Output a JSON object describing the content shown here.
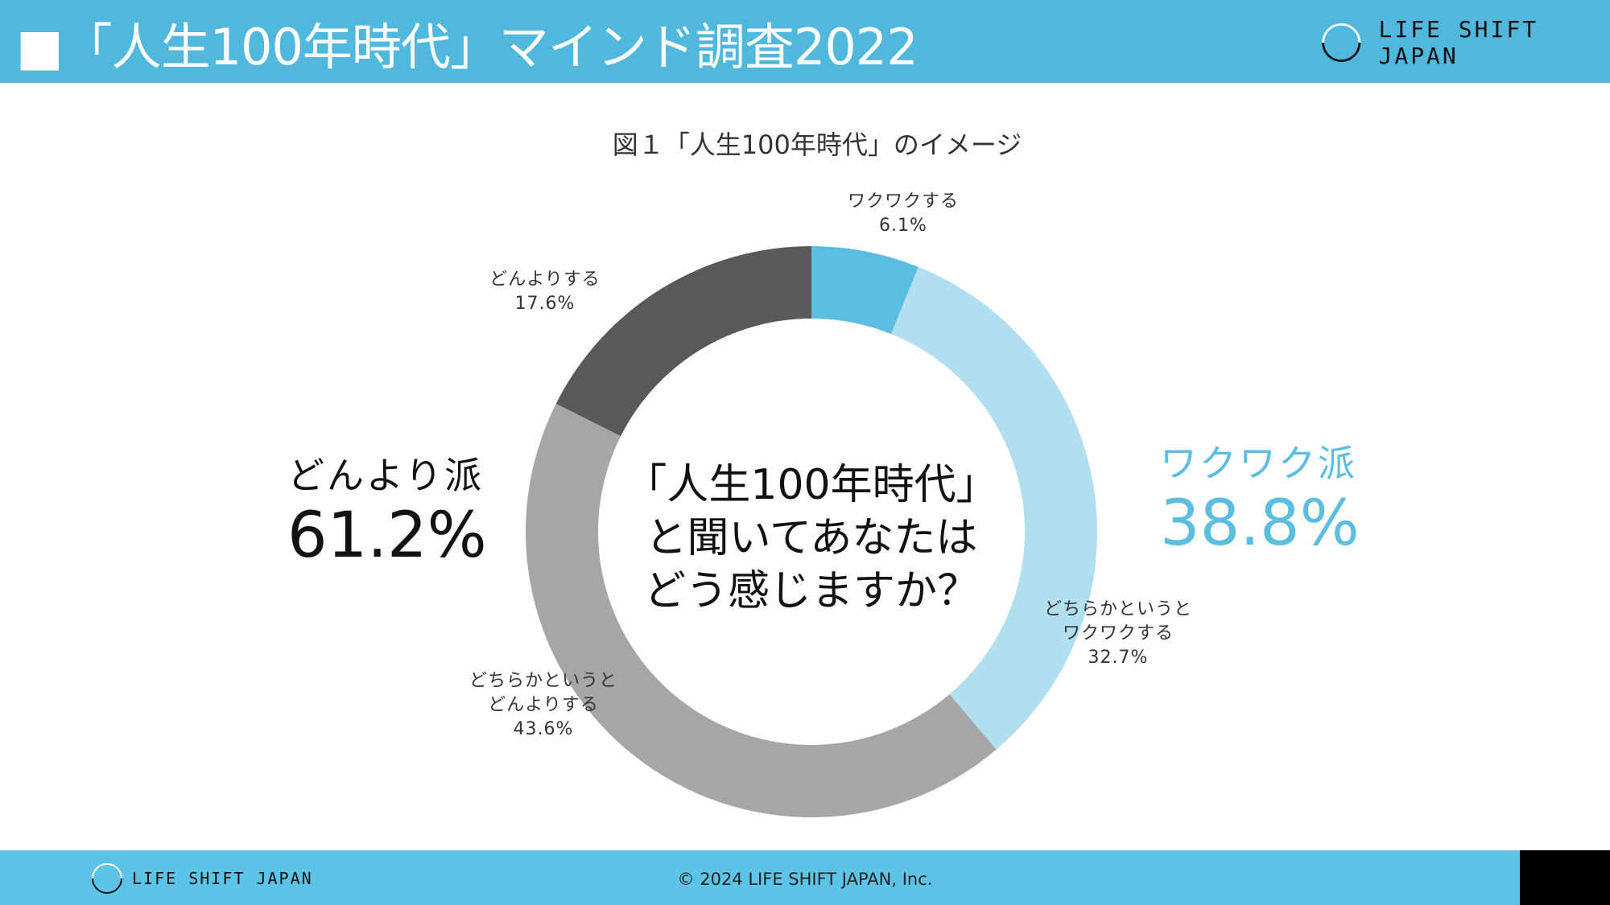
{
  "header": {
    "title": "■「人生100年時代」マインド調査2022",
    "logo": "LIFE SHIFT JAPAN"
  },
  "chart_data": {
    "type": "pie",
    "title": "図１「人生100年時代」のイメージ",
    "center_label": [
      "「人生100年時代」",
      "と聞いてあなたは",
      "どう感じますか？"
    ],
    "slices": [
      {
        "label": [
          "ワクワクする"
        ],
        "value": 6.1,
        "value_label": "6.1%",
        "color": "#5bbde0"
      },
      {
        "label": [
          "どちらかというと",
          "ワクワクする"
        ],
        "value": 32.7,
        "value_label": "32.7%",
        "color": "#b0dff0"
      },
      {
        "label": [
          "どちらかというと",
          "どんよりする"
        ],
        "value": 43.6,
        "value_label": "43.6%",
        "color": "#a6a6a6"
      },
      {
        "label": [
          "どんよりする"
        ],
        "value": 17.6,
        "value_label": "17.6%",
        "color": "#595959"
      }
    ],
    "groups": [
      {
        "name": "どんより派",
        "value_label": "61.2%",
        "color": "#111111"
      },
      {
        "name": "ワクワク派",
        "value_label": "38.8%",
        "color": "#5bbde0"
      }
    ]
  },
  "footer": {
    "logo": "LIFE SHIFT JAPAN",
    "copyright": "© 2024 LIFE SHIFT JAPAN, Inc."
  }
}
